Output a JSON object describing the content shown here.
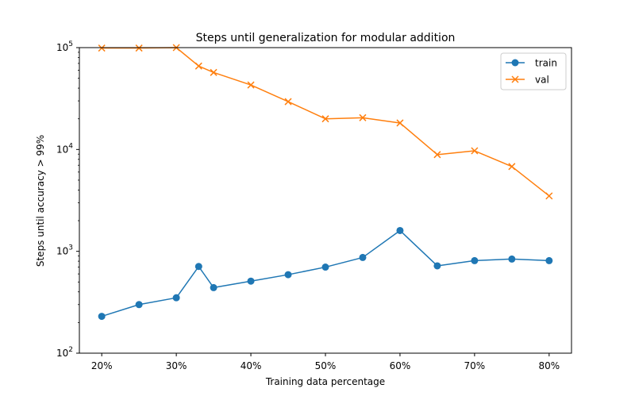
{
  "chart_data": {
    "type": "line",
    "title": "Steps until generalization for modular addition",
    "xlabel": "Training data percentage",
    "ylabel": "Steps until accuracy > 99%",
    "yscale": "log",
    "ylim": [
      100,
      100000
    ],
    "xlim": [
      17,
      83
    ],
    "x": [
      20,
      25,
      30,
      33,
      35,
      40,
      45,
      50,
      55,
      60,
      65,
      70,
      75,
      80
    ],
    "xticks": [
      {
        "value": 20,
        "label": "20%"
      },
      {
        "value": 30,
        "label": "30%"
      },
      {
        "value": 40,
        "label": "40%"
      },
      {
        "value": 50,
        "label": "50%"
      },
      {
        "value": 60,
        "label": "60%"
      },
      {
        "value": 70,
        "label": "70%"
      },
      {
        "value": 80,
        "label": "80%"
      }
    ],
    "yticks": [
      {
        "value": 100,
        "base": "10",
        "exp": "2"
      },
      {
        "value": 1000,
        "base": "10",
        "exp": "3"
      },
      {
        "value": 10000,
        "base": "10",
        "exp": "4"
      },
      {
        "value": 100000,
        "base": "10",
        "exp": "5"
      }
    ],
    "grid": false,
    "legend_position": "top-right",
    "series": [
      {
        "name": "train",
        "color": "#1f77b4",
        "marker": "circle",
        "values": [
          230,
          300,
          350,
          710,
          440,
          510,
          590,
          700,
          870,
          1600,
          720,
          810,
          840,
          810
        ]
      },
      {
        "name": "val",
        "color": "#ff7f0e",
        "marker": "x",
        "values": [
          99000,
          99000,
          100000,
          66000,
          57000,
          43000,
          29500,
          20000,
          20500,
          18200,
          8900,
          9700,
          6800,
          3500
        ]
      }
    ]
  }
}
